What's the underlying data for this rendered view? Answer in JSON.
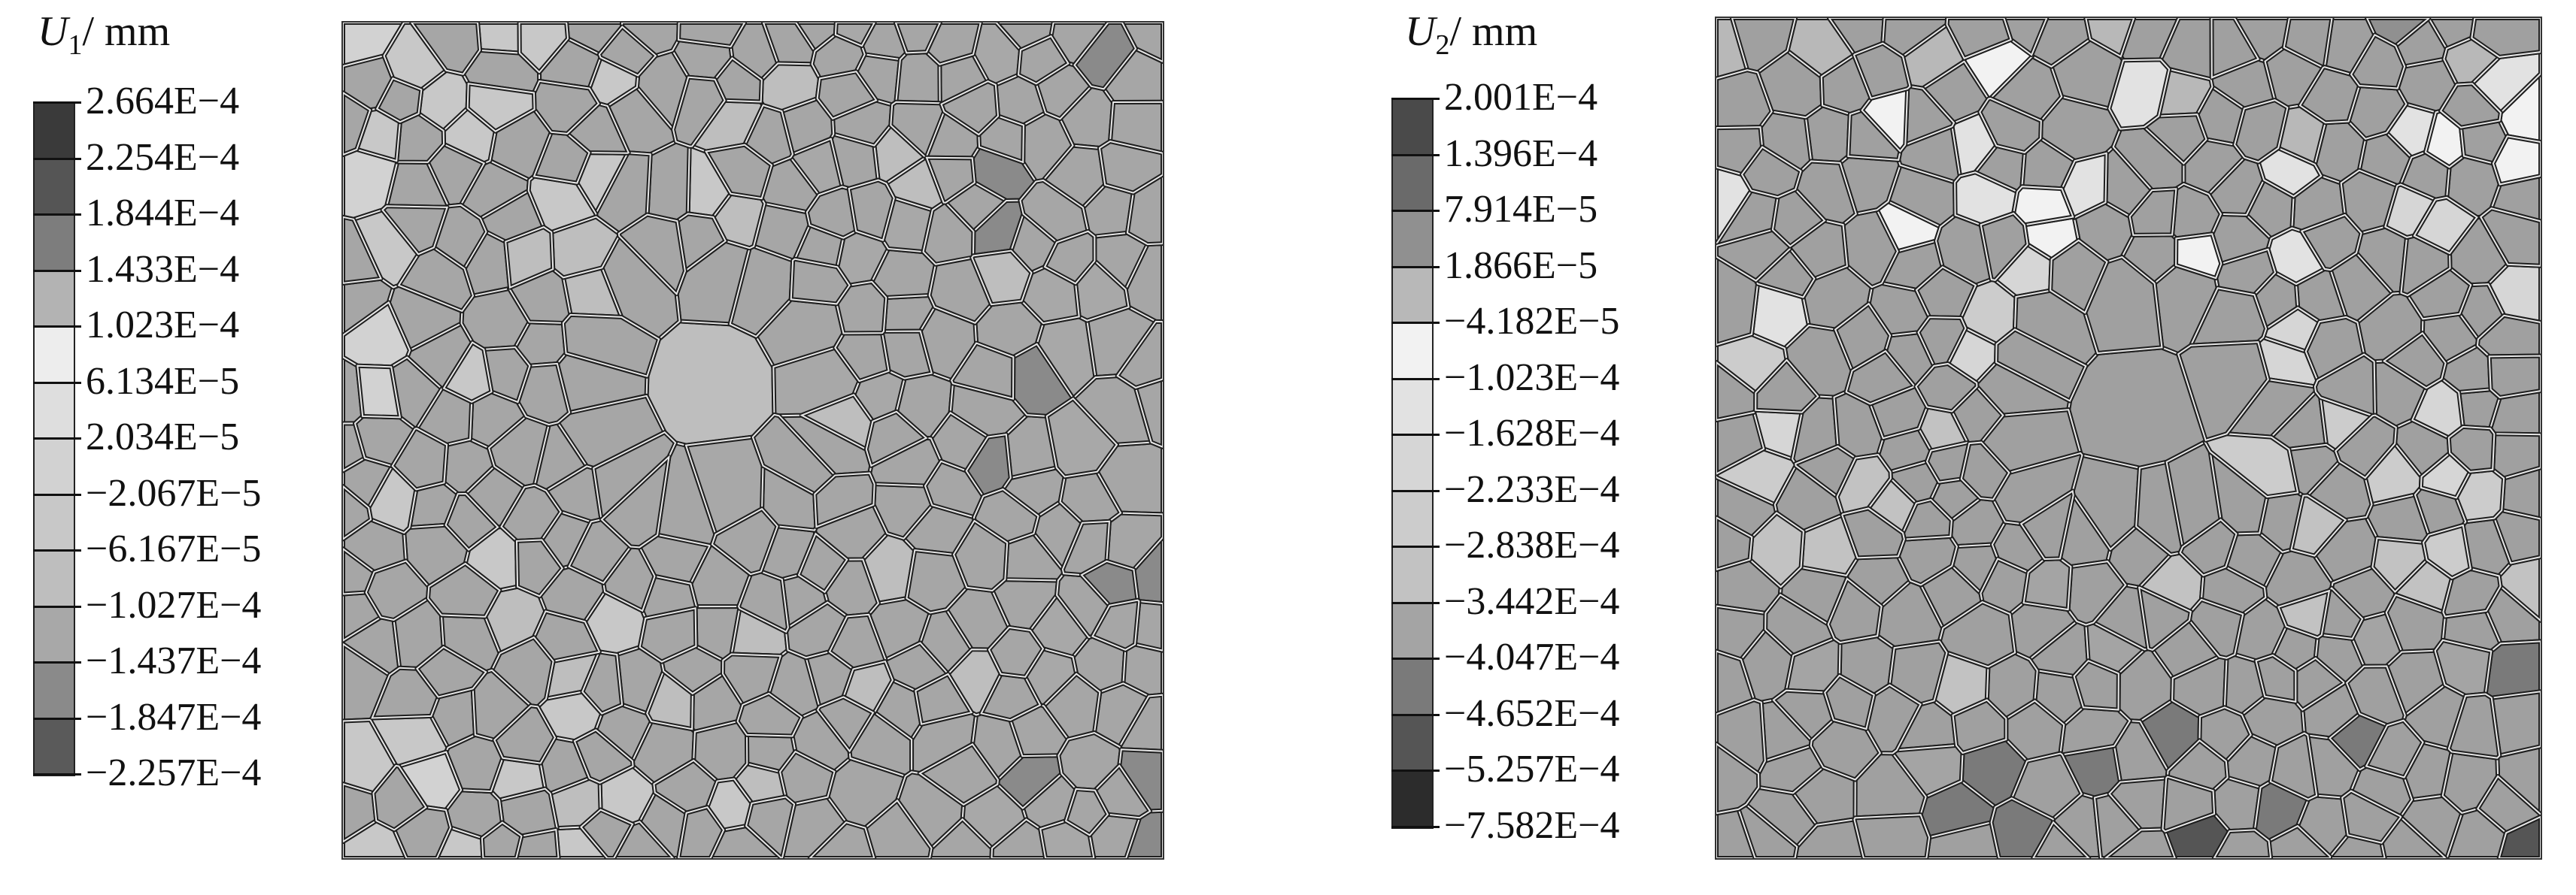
{
  "panels": [
    {
      "title_var": "U",
      "title_sub": "1",
      "title_unit": "/ mm",
      "legend": [
        {
          "label": "2.664E−4",
          "color": "#3a3a3a"
        },
        {
          "label": "2.254E−4",
          "color": "#555555"
        },
        {
          "label": "1.844E−4",
          "color": "#7d7d7d"
        },
        {
          "label": "1.433E−4",
          "color": "#b3b3b3"
        },
        {
          "label": "1.023E−4",
          "color": "#ededed"
        },
        {
          "label": "6.134E−5",
          "color": "#dedede"
        },
        {
          "label": "2.034E−5",
          "color": "#d2d2d2"
        },
        {
          "label": "−2.067E−5",
          "color": "#c8c8c8"
        },
        {
          "label": "−6.167E−5",
          "color": "#bebebe"
        },
        {
          "label": "−1.027E−4",
          "color": "#a8a8a8"
        },
        {
          "label": "−1.437E−4",
          "color": "#8a8a8a"
        },
        {
          "label": "−1.847E−4",
          "color": "#5a5a5a"
        },
        {
          "label": "−2.257E−4",
          "color": "#2e2e2e"
        }
      ],
      "field_base_color": "#a6a6a6"
    },
    {
      "title_var": "U",
      "title_sub": "2",
      "title_unit": "/ mm",
      "legend": [
        {
          "label": "2.001E−4",
          "color": "#4a4a4a"
        },
        {
          "label": "1.396E−4",
          "color": "#6a6a6a"
        },
        {
          "label": "7.914E−5",
          "color": "#909090"
        },
        {
          "label": "1.866E−5",
          "color": "#b8b8b8"
        },
        {
          "label": "−4.182E−5",
          "color": "#f2f2f2"
        },
        {
          "label": "−1.023E−4",
          "color": "#e2e2e2"
        },
        {
          "label": "−1.628E−4",
          "color": "#d6d6d6"
        },
        {
          "label": "−2.233E−4",
          "color": "#cccccc"
        },
        {
          "label": "−2.838E−4",
          "color": "#c2c2c2"
        },
        {
          "label": "−3.442E−4",
          "color": "#a4a4a4"
        },
        {
          "label": "−4.047E−4",
          "color": "#7a7a7a"
        },
        {
          "label": "−4.652E−4",
          "color": "#555555"
        },
        {
          "label": "−5.257E−4",
          "color": "#2c2c2c"
        },
        {
          "label": "−7.582E−4",
          "color": "#d8d8d8"
        }
      ],
      "field_base_color": "#a0a0a0"
    }
  ]
}
